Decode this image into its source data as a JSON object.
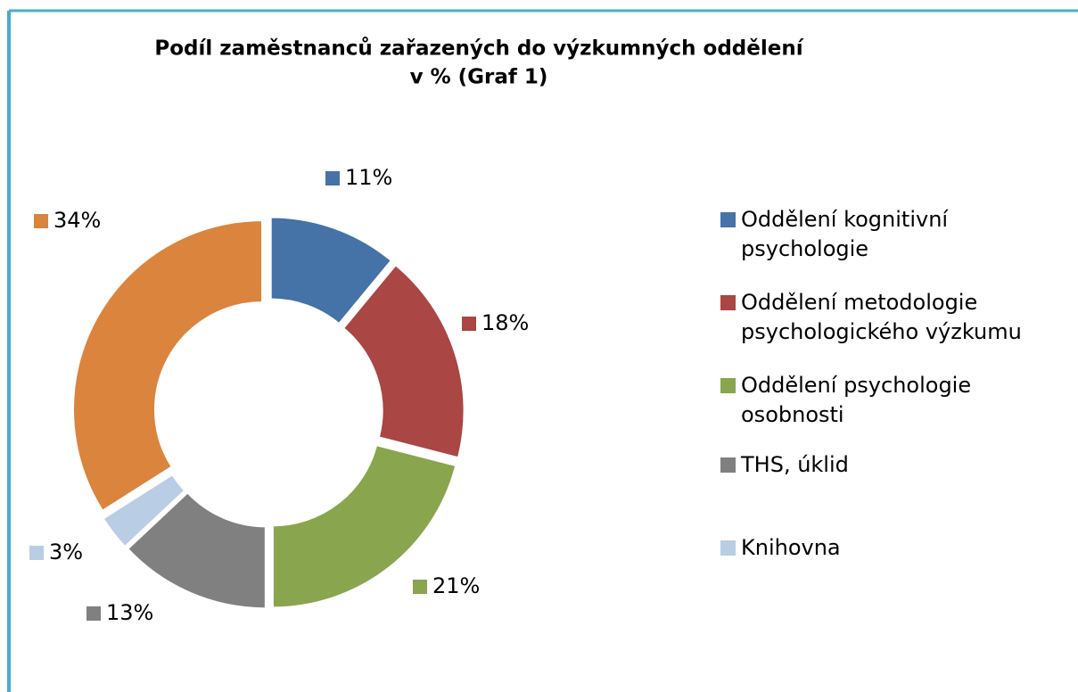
{
  "chart_data": {
    "type": "doughnut",
    "title": [
      "Podíl zaměstnanců zařazených do výzkumných oddělení",
      "v % (Graf 1)"
    ],
    "categories": [
      "Oddělení kognitivní psychologie",
      "Oddělení metodologie psychologického výzkumu",
      "Oddělení psychologie osobnosti",
      "THS, úklid",
      "Knihovna",
      null
    ],
    "values": [
      11,
      18,
      21,
      13,
      3,
      34
    ],
    "value_labels": [
      "11%",
      "18%",
      "21%",
      "13%",
      "3%",
      "34%"
    ],
    "colors": [
      "#4572a7",
      "#aa4643",
      "#89a54e",
      "#808080",
      "#b9cde5",
      "#db843d"
    ],
    "legend": "right"
  }
}
